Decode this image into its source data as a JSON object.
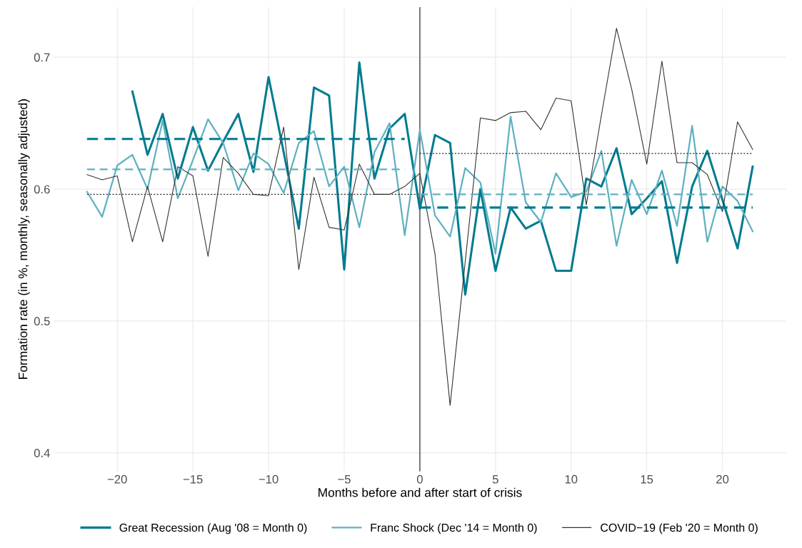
{
  "chart_data": {
    "type": "line",
    "xlabel": "Months before and after start of crisis",
    "ylabel": "Formation rate (in %, monthly, seasonally adjusted)",
    "xlim": [
      -24.2,
      24.2
    ],
    "ylim": [
      0.386,
      0.738
    ],
    "xticks": [
      {
        "value": -20,
        "label": "−20"
      },
      {
        "value": -15,
        "label": "−15"
      },
      {
        "value": -10,
        "label": "−10"
      },
      {
        "value": -5,
        "label": "−5"
      },
      0,
      5,
      10,
      15,
      20
    ],
    "yticks": [
      0.4,
      0.5,
      0.6,
      0.7
    ],
    "grid": true,
    "legend": "bottom",
    "marker": "none",
    "ref_lines": [
      {
        "axis": "x",
        "value": 0,
        "color": "#555555",
        "line_style": "solid"
      }
    ],
    "series": [
      {
        "name": "Great Recession (Aug '08 = Month 0)",
        "color": "#007b8f",
        "line_style": "solid",
        "x": [
          -19,
          -18,
          -17,
          -16,
          -15,
          -14,
          -13,
          -12,
          -11,
          -10,
          -9,
          -8,
          -7,
          -6,
          -5,
          -4,
          -3,
          -2,
          -1,
          0,
          1,
          2,
          3,
          4,
          5,
          6,
          7,
          8,
          9,
          10,
          11,
          12,
          13,
          14,
          15,
          16,
          17,
          18,
          19,
          20,
          21,
          22
        ],
        "values": [
          0.674,
          0.626,
          0.657,
          0.608,
          0.647,
          0.614,
          0.636,
          0.657,
          0.613,
          0.685,
          0.628,
          0.57,
          0.677,
          0.671,
          0.539,
          0.696,
          0.608,
          0.646,
          0.657,
          0.585,
          0.641,
          0.635,
          0.52,
          0.6,
          0.538,
          0.586,
          0.57,
          0.576,
          0.538,
          0.538,
          0.608,
          0.602,
          0.631,
          0.581,
          0.593,
          0.606,
          0.544,
          0.602,
          0.629,
          0.592,
          0.555,
          0.617
        ]
      },
      {
        "name": "Franc Shock (Dec '14 = Month 0)",
        "color": "#5fb0c0",
        "line_style": "solid",
        "x": [
          -22,
          -21,
          -20,
          -19,
          -18,
          -17,
          -16,
          -15,
          -14,
          -13,
          -12,
          -11,
          -10,
          -9,
          -8,
          -7,
          -6,
          -5,
          -4,
          -3,
          -2,
          -1,
          0,
          1,
          2,
          3,
          4,
          5,
          6,
          7,
          8,
          9,
          10,
          11,
          12,
          13,
          14,
          15,
          16,
          17,
          18,
          19,
          20,
          21,
          22
        ],
        "values": [
          0.598,
          0.579,
          0.618,
          0.626,
          0.6,
          0.652,
          0.593,
          0.622,
          0.653,
          0.635,
          0.599,
          0.627,
          0.619,
          0.597,
          0.635,
          0.644,
          0.602,
          0.617,
          0.571,
          0.628,
          0.65,
          0.565,
          0.645,
          0.58,
          0.564,
          0.616,
          0.605,
          0.551,
          0.655,
          0.59,
          0.575,
          0.612,
          0.594,
          0.598,
          0.629,
          0.557,
          0.607,
          0.581,
          0.614,
          0.572,
          0.648,
          0.56,
          0.602,
          0.591,
          0.568
        ]
      },
      {
        "name": "COVID−19 (Feb '20 = Month 0)",
        "color": "#333333",
        "line_style": "solid",
        "x": [
          -22,
          -21,
          -20,
          -19,
          -18,
          -17,
          -16,
          -15,
          -14,
          -13,
          -12,
          -11,
          -10,
          -9,
          -8,
          -7,
          -6,
          -5,
          -4,
          -3,
          -2,
          -1,
          0,
          1,
          2,
          3,
          4,
          5,
          6,
          7,
          8,
          9,
          10,
          11,
          12,
          13,
          14,
          15,
          16,
          17,
          18,
          19,
          20,
          21,
          22
        ],
        "values": [
          0.611,
          0.607,
          0.61,
          0.56,
          0.602,
          0.56,
          0.617,
          0.61,
          0.549,
          0.624,
          0.612,
          0.596,
          0.595,
          0.647,
          0.539,
          0.609,
          0.571,
          0.569,
          0.619,
          0.596,
          0.596,
          0.602,
          0.612,
          0.551,
          0.436,
          0.545,
          0.654,
          0.652,
          0.658,
          0.659,
          0.645,
          0.669,
          0.667,
          0.588,
          0.656,
          0.722,
          0.676,
          0.619,
          0.697,
          0.62,
          0.62,
          0.611,
          0.583,
          0.651,
          0.63
        ]
      },
      {
        "color": "#007b8f",
        "line_style": "dashed",
        "x": [
          -22,
          -1
        ],
        "values": [
          0.638,
          0.638
        ]
      },
      {
        "color": "#007b8f",
        "line_style": "dashed",
        "x": [
          0,
          22
        ],
        "values": [
          0.586,
          0.586
        ]
      },
      {
        "color": "#5fb0c0",
        "line_style": "dashed",
        "x": [
          -22,
          -1
        ],
        "values": [
          0.615,
          0.615
        ]
      },
      {
        "color": "#5fb0c0",
        "line_style": "dashed",
        "x": [
          0,
          22
        ],
        "values": [
          0.596,
          0.596
        ]
      },
      {
        "color": "#333333",
        "line_style": "dotted",
        "x": [
          -22,
          0
        ],
        "values": [
          0.596,
          0.596
        ]
      },
      {
        "color": "#333333",
        "line_style": "dotted",
        "x": [
          0,
          22
        ],
        "values": [
          0.627,
          0.627
        ]
      }
    ]
  }
}
